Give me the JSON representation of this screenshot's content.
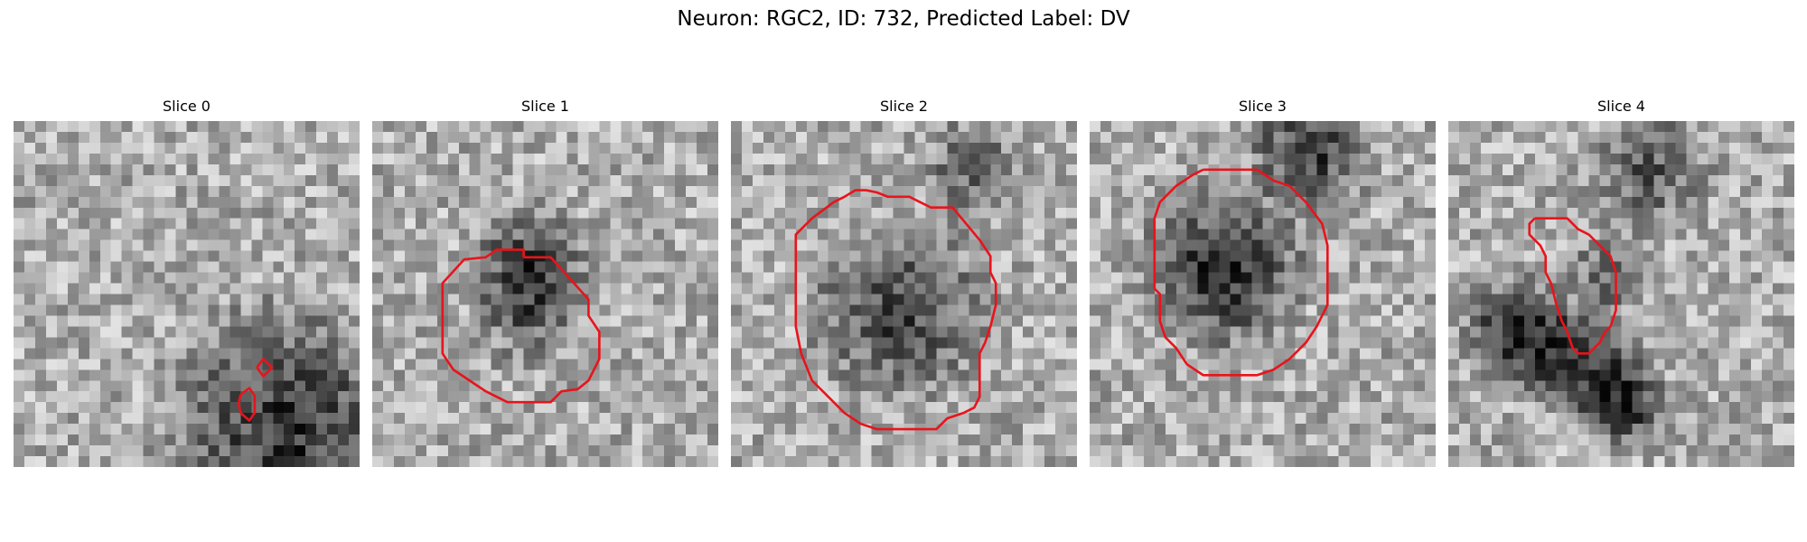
{
  "figure": {
    "title": "Neuron: RGC2, ID: 732, Predicted Label: DV"
  },
  "panels": [
    {
      "title": "Slice 0",
      "contours": [
        [
          [
            22.5,
            22.8
          ],
          [
            23.1,
            22.0
          ],
          [
            23.9,
            22.8
          ],
          [
            23.1,
            23.6
          ],
          [
            22.5,
            22.8
          ]
        ],
        [
          [
            21.0,
            25.3
          ],
          [
            21.8,
            24.7
          ],
          [
            22.3,
            25.4
          ],
          [
            22.3,
            27.0
          ],
          [
            21.8,
            27.7
          ],
          [
            21.0,
            27.0
          ],
          [
            20.8,
            26.1
          ],
          [
            21.0,
            25.3
          ]
        ]
      ],
      "dark_regions": [
        {
          "x": 25,
          "y": 28,
          "r": 14,
          "strength": 0.45
        }
      ]
    },
    {
      "title": "Slice 1",
      "contours": [
        [
          [
            14.0,
            12.6
          ],
          [
            16.5,
            12.6
          ],
          [
            20.0,
            16.5
          ],
          [
            20.0,
            18.0
          ],
          [
            21.0,
            19.5
          ],
          [
            21.0,
            22.0
          ],
          [
            20.0,
            24.0
          ],
          [
            19.0,
            24.8
          ],
          [
            17.5,
            25.0
          ],
          [
            16.5,
            26.0
          ],
          [
            12.5,
            26.0
          ],
          [
            10.5,
            25.0
          ],
          [
            7.5,
            23.0
          ],
          [
            6.5,
            21.5
          ],
          [
            6.5,
            15.0
          ],
          [
            8.5,
            12.8
          ],
          [
            10.5,
            12.6
          ],
          [
            11.5,
            11.9
          ],
          [
            14.0,
            11.9
          ],
          [
            14.0,
            12.6
          ]
        ]
      ],
      "dark_regions": [
        {
          "x": 14,
          "y": 13,
          "r": 7,
          "strength": 0.4
        },
        {
          "x": 14,
          "y": 18,
          "r": 6,
          "strength": 0.2
        }
      ]
    },
    {
      "title": "Slice 2",
      "contours": [
        [
          [
            12.5,
            6.4
          ],
          [
            13.5,
            6.6
          ],
          [
            14.5,
            7.0
          ],
          [
            16.5,
            7.0
          ],
          [
            17.5,
            7.5
          ],
          [
            18.5,
            8.0
          ],
          [
            20.5,
            8.0
          ],
          [
            23.0,
            11.0
          ],
          [
            24.0,
            12.5
          ],
          [
            24.0,
            14.0
          ],
          [
            24.5,
            15.0
          ],
          [
            24.5,
            17.0
          ],
          [
            24.0,
            19.0
          ],
          [
            23.5,
            20.5
          ],
          [
            23.0,
            21.5
          ],
          [
            23.0,
            25.5
          ],
          [
            22.5,
            26.5
          ],
          [
            21.5,
            27.0
          ],
          [
            20.0,
            27.5
          ],
          [
            19.0,
            28.5
          ],
          [
            17.5,
            28.5
          ],
          [
            15.0,
            28.5
          ],
          [
            13.5,
            28.5
          ],
          [
            12.0,
            28.0
          ],
          [
            10.5,
            27.0
          ],
          [
            9.0,
            25.5
          ],
          [
            7.5,
            24.0
          ],
          [
            6.5,
            21.5
          ],
          [
            6.0,
            19.0
          ],
          [
            6.0,
            12.5
          ],
          [
            6.0,
            10.5
          ],
          [
            7.5,
            9.0
          ],
          [
            9.5,
            7.5
          ],
          [
            10.5,
            7.0
          ],
          [
            11.5,
            6.4
          ],
          [
            12.5,
            6.4
          ]
        ]
      ],
      "dark_regions": [
        {
          "x": 15,
          "y": 17,
          "r": 10,
          "strength": 0.4
        },
        {
          "x": 22,
          "y": 4,
          "r": 6,
          "strength": 0.3
        }
      ]
    },
    {
      "title": "Slice 3",
      "contours": [
        [
          [
            10.5,
            4.5
          ],
          [
            13.5,
            4.5
          ],
          [
            15.5,
            4.5
          ],
          [
            17.0,
            5.5
          ],
          [
            18.5,
            6.0
          ],
          [
            20.0,
            7.5
          ],
          [
            21.5,
            9.5
          ],
          [
            22.0,
            11.5
          ],
          [
            22.0,
            17.0
          ],
          [
            21.0,
            19.0
          ],
          [
            20.0,
            20.5
          ],
          [
            18.5,
            22.0
          ],
          [
            17.0,
            23.0
          ],
          [
            15.5,
            23.5
          ],
          [
            10.5,
            23.5
          ],
          [
            9.0,
            22.5
          ],
          [
            8.0,
            21.0
          ],
          [
            7.0,
            20.0
          ],
          [
            6.5,
            18.5
          ],
          [
            6.5,
            16.0
          ],
          [
            6.0,
            15.5
          ],
          [
            6.0,
            13.5
          ],
          [
            6.0,
            9.0
          ],
          [
            6.5,
            7.5
          ],
          [
            8.0,
            6.0
          ],
          [
            9.5,
            5.0
          ],
          [
            10.5,
            4.5
          ]
        ]
      ],
      "dark_regions": [
        {
          "x": 12,
          "y": 13,
          "r": 9,
          "strength": 0.5
        },
        {
          "x": 20,
          "y": 2,
          "r": 7,
          "strength": 0.45
        }
      ]
    },
    {
      "title": "Slice 4",
      "contours": [
        [
          [
            8.0,
            9.0
          ],
          [
            11.0,
            9.0
          ],
          [
            12.0,
            10.0
          ],
          [
            13.0,
            10.5
          ],
          [
            14.0,
            11.5
          ],
          [
            15.0,
            12.5
          ],
          [
            15.5,
            14.0
          ],
          [
            15.5,
            17.5
          ],
          [
            15.0,
            19.0
          ],
          [
            14.5,
            19.5
          ],
          [
            14.0,
            20.5
          ],
          [
            13.5,
            21.0
          ],
          [
            13.0,
            21.5
          ],
          [
            12.0,
            21.5
          ],
          [
            11.5,
            21.0
          ],
          [
            11.0,
            19.5
          ],
          [
            10.5,
            18.5
          ],
          [
            10.0,
            17.0
          ],
          [
            9.5,
            15.0
          ],
          [
            9.0,
            14.0
          ],
          [
            9.0,
            12.5
          ],
          [
            8.5,
            11.5
          ],
          [
            8.0,
            11.0
          ],
          [
            7.5,
            10.5
          ],
          [
            7.5,
            9.5
          ],
          [
            8.0,
            9.0
          ]
        ]
      ],
      "dark_regions": [
        {
          "x": 6,
          "y": 19,
          "r": 6,
          "strength": 0.55
        },
        {
          "x": 12,
          "y": 22,
          "r": 6,
          "strength": 0.5
        },
        {
          "x": 16,
          "y": 26,
          "r": 5,
          "strength": 0.45
        },
        {
          "x": 14,
          "y": 14,
          "r": 5,
          "strength": 0.25
        },
        {
          "x": 18,
          "y": 4,
          "r": 7,
          "strength": 0.3
        }
      ]
    }
  ],
  "colors": {
    "contour": "#e8141c",
    "background": "#ffffff"
  },
  "image_grid": 32
}
